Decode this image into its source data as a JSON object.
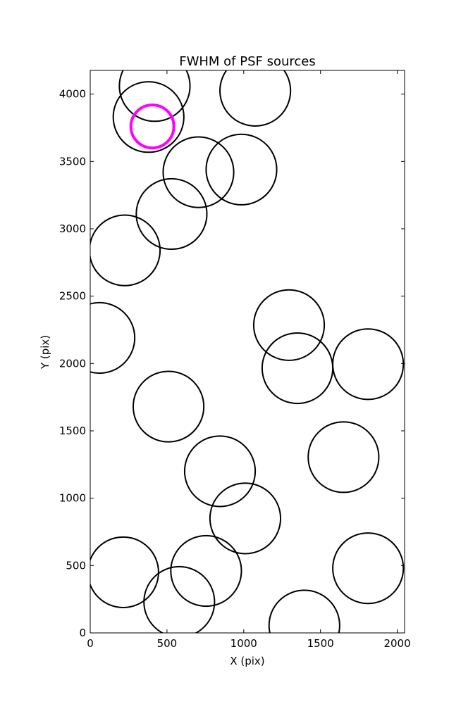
{
  "chart_data": {
    "type": "scatter",
    "title": "FWHM of PSF sources",
    "xlabel": "X (pix)",
    "ylabel": "Y (pix)",
    "xlim": [
      0,
      2048
    ],
    "ylim": [
      0,
      4176
    ],
    "xticks": [
      0,
      500,
      1000,
      1500,
      2000
    ],
    "yticks": [
      0,
      500,
      1000,
      1500,
      2000,
      2500,
      3000,
      3500,
      4000
    ],
    "grid": false,
    "marker": "open-circle",
    "sources": [
      {
        "x": 420,
        "y": 4060,
        "r": 230
      },
      {
        "x": 1075,
        "y": 4025,
        "r": 230
      },
      {
        "x": 380,
        "y": 3830,
        "r": 230
      },
      {
        "x": 705,
        "y": 3420,
        "r": 230
      },
      {
        "x": 985,
        "y": 3440,
        "r": 230
      },
      {
        "x": 530,
        "y": 3110,
        "r": 230
      },
      {
        "x": 225,
        "y": 2840,
        "r": 230
      },
      {
        "x": 1295,
        "y": 2285,
        "r": 230
      },
      {
        "x": 60,
        "y": 2190,
        "r": 230
      },
      {
        "x": 1810,
        "y": 1995,
        "r": 230
      },
      {
        "x": 1350,
        "y": 1965,
        "r": 230
      },
      {
        "x": 510,
        "y": 1680,
        "r": 230
      },
      {
        "x": 1650,
        "y": 1305,
        "r": 230
      },
      {
        "x": 845,
        "y": 1200,
        "r": 230
      },
      {
        "x": 1010,
        "y": 850,
        "r": 230
      },
      {
        "x": 1810,
        "y": 480,
        "r": 230
      },
      {
        "x": 215,
        "y": 450,
        "r": 230
      },
      {
        "x": 755,
        "y": 460,
        "r": 230
      },
      {
        "x": 580,
        "y": 230,
        "r": 230
      },
      {
        "x": 1395,
        "y": 55,
        "r": 230
      }
    ],
    "highlight": {
      "x": 405,
      "y": 3760,
      "r": 140,
      "color": "#ff00ff"
    },
    "marker_color": "#000000"
  }
}
